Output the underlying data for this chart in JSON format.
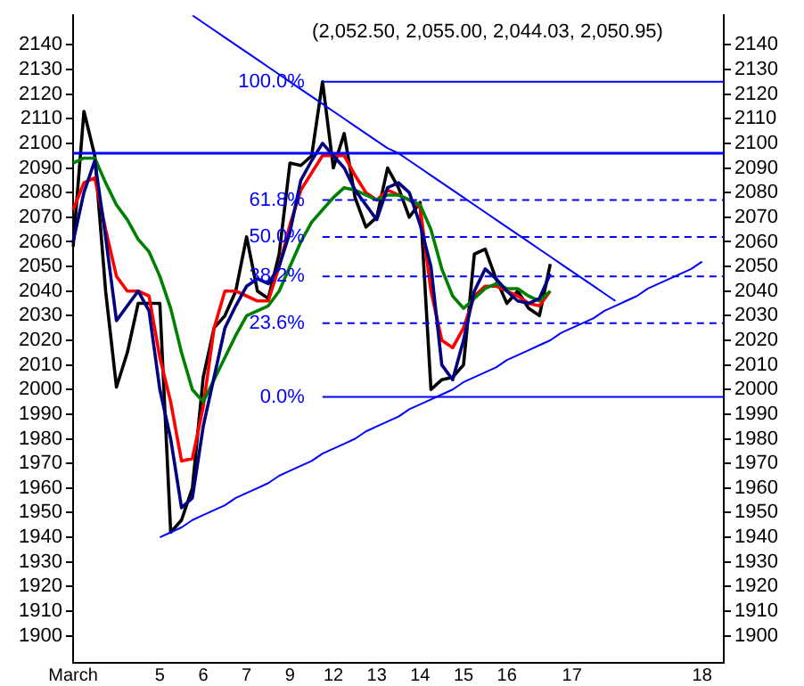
{
  "chart_data": {
    "type": "line",
    "title": "(2,052.50, 2,055.00, 2,044.03, 2,050.95)",
    "categories": [
      "March",
      null,
      null,
      null,
      null,
      null,
      null,
      null,
      "5",
      null,
      null,
      null,
      "6",
      null,
      null,
      null,
      "7",
      null,
      null,
      null,
      "9",
      null,
      null,
      null,
      "12",
      null,
      null,
      null,
      "13",
      null,
      null,
      null,
      "14",
      null,
      null,
      null,
      "15",
      null,
      null,
      null,
      "16",
      null,
      null,
      null,
      null,
      null,
      "17",
      null,
      null,
      null,
      null,
      null,
      null,
      null,
      null,
      null,
      null,
      null,
      "18",
      null,
      null
    ],
    "ylim": [
      1889,
      2152
    ],
    "yticks": [
      1900,
      1910,
      1920,
      1930,
      1940,
      1950,
      1960,
      1970,
      1980,
      1990,
      2000,
      2010,
      2020,
      2030,
      2040,
      2050,
      2060,
      2070,
      2080,
      2090,
      2100,
      2110,
      2120,
      2130,
      2140
    ],
    "y2lim": [
      1889,
      2152
    ],
    "y2ticks": [
      1900,
      1910,
      1920,
      1930,
      1940,
      1950,
      1960,
      1970,
      1980,
      1990,
      2000,
      2010,
      2020,
      2030,
      2040,
      2050,
      2060,
      2070,
      2080,
      2090,
      2100,
      2110,
      2120,
      2130,
      2140
    ],
    "grid": false,
    "legend": false,
    "marker": "none",
    "ref_lines": [
      {
        "axis": "y",
        "value": 2096,
        "color": "#0000ff"
      }
    ],
    "series": [
      {
        "name": "100.0%",
        "color": "#0000ff",
        "values": [
          null,
          null,
          null,
          null,
          null,
          null,
          null,
          null,
          null,
          null,
          null,
          null,
          null,
          null,
          null,
          null,
          null,
          null,
          null,
          null,
          null,
          null,
          null,
          2125,
          2125,
          2125,
          2125,
          2125,
          2125,
          2125,
          2125,
          2125,
          2125,
          2125,
          2125,
          2125,
          2125,
          2125,
          2125,
          2125,
          2125,
          2125,
          2125,
          2125,
          2125,
          2125,
          2125,
          2125,
          2125,
          2125,
          2125,
          2125,
          2125,
          2125,
          2125,
          2125,
          2125,
          2125,
          2125,
          2125,
          2125
        ]
      },
      {
        "name": "61.8%",
        "color": "#0000ff",
        "line_style": "dashed",
        "values": [
          null,
          null,
          null,
          null,
          null,
          null,
          null,
          null,
          null,
          null,
          null,
          null,
          null,
          null,
          null,
          null,
          null,
          null,
          null,
          null,
          null,
          null,
          null,
          2077,
          2077,
          2077,
          2077,
          2077,
          2077,
          2077,
          2077,
          2077,
          2077,
          2077,
          2077,
          2077,
          2077,
          2077,
          2077,
          2077,
          2077,
          2077,
          2077,
          2077,
          2077,
          2077,
          2077,
          2077,
          2077,
          2077,
          2077,
          2077,
          2077,
          2077,
          2077,
          2077,
          2077,
          2077,
          2077,
          2077,
          2077
        ]
      },
      {
        "name": "50.0%",
        "color": "#0000ff",
        "line_style": "dashed",
        "values": [
          null,
          null,
          null,
          null,
          null,
          null,
          null,
          null,
          null,
          null,
          null,
          null,
          null,
          null,
          null,
          null,
          null,
          null,
          null,
          null,
          null,
          null,
          null,
          2062,
          2062,
          2062,
          2062,
          2062,
          2062,
          2062,
          2062,
          2062,
          2062,
          2062,
          2062,
          2062,
          2062,
          2062,
          2062,
          2062,
          2062,
          2062,
          2062,
          2062,
          2062,
          2062,
          2062,
          2062,
          2062,
          2062,
          2062,
          2062,
          2062,
          2062,
          2062,
          2062,
          2062,
          2062,
          2062,
          2062,
          2062
        ]
      },
      {
        "name": "38.2%",
        "color": "#0000ff",
        "line_style": "dashed",
        "values": [
          null,
          null,
          null,
          null,
          null,
          null,
          null,
          null,
          null,
          null,
          null,
          null,
          null,
          null,
          null,
          null,
          null,
          null,
          null,
          null,
          null,
          null,
          null,
          2046,
          2046,
          2046,
          2046,
          2046,
          2046,
          2046,
          2046,
          2046,
          2046,
          2046,
          2046,
          2046,
          2046,
          2046,
          2046,
          2046,
          2046,
          2046,
          2046,
          2046,
          2046,
          2046,
          2046,
          2046,
          2046,
          2046,
          2046,
          2046,
          2046,
          2046,
          2046,
          2046,
          2046,
          2046,
          2046,
          2046,
          2046
        ]
      },
      {
        "name": "23.6%",
        "color": "#0000ff",
        "line_style": "dashed",
        "values": [
          null,
          null,
          null,
          null,
          null,
          null,
          null,
          null,
          null,
          null,
          null,
          null,
          null,
          null,
          null,
          null,
          null,
          null,
          null,
          null,
          null,
          null,
          null,
          2027,
          2027,
          2027,
          2027,
          2027,
          2027,
          2027,
          2027,
          2027,
          2027,
          2027,
          2027,
          2027,
          2027,
          2027,
          2027,
          2027,
          2027,
          2027,
          2027,
          2027,
          2027,
          2027,
          2027,
          2027,
          2027,
          2027,
          2027,
          2027,
          2027,
          2027,
          2027,
          2027,
          2027,
          2027,
          2027,
          2027,
          2027
        ]
      },
      {
        "name": "0.0%",
        "color": "#0000ff",
        "values": [
          null,
          null,
          null,
          null,
          null,
          null,
          null,
          null,
          null,
          null,
          null,
          null,
          null,
          null,
          null,
          null,
          null,
          null,
          null,
          null,
          null,
          null,
          null,
          1997,
          1997,
          1997,
          1997,
          1997,
          1997,
          1997,
          1997,
          1997,
          1997,
          1997,
          1997,
          1997,
          1997,
          1997,
          1997,
          1997,
          1997,
          1997,
          1997,
          1997,
          1997,
          1997,
          1997,
          1997,
          1997,
          1997,
          1997,
          1997,
          1997,
          1997,
          1997,
          1997,
          1997,
          1997,
          1997,
          1997,
          1997
        ]
      },
      {
        "color": "#0000ff",
        "values": [
          null,
          null,
          null,
          null,
          null,
          null,
          null,
          null,
          null,
          null,
          null,
          2152,
          2149,
          2146,
          2143,
          2140,
          2137,
          2134,
          2131,
          2128,
          2125,
          2122,
          2119,
          2116,
          2113,
          2110,
          2107,
          2104,
          2101,
          2098,
          2096,
          2093,
          2090,
          2087,
          2084,
          2081,
          2078,
          2075,
          2072,
          2069,
          2066,
          2063,
          2060,
          2057,
          2054,
          2051,
          2048,
          2045,
          2042,
          2039,
          2036,
          null,
          null,
          null,
          null,
          null,
          null,
          null,
          null,
          null,
          null
        ]
      },
      {
        "color": "#0000ff",
        "values": [
          null,
          null,
          null,
          null,
          null,
          null,
          null,
          null,
          1940,
          1942,
          1944,
          1947,
          1949,
          1951,
          1953,
          1956,
          1958,
          1960,
          1962,
          1965,
          1967,
          1969,
          1971,
          1974,
          1976,
          1978,
          1980,
          1983,
          1985,
          1987,
          1989,
          1992,
          1994,
          1996,
          1998,
          2000,
          2003,
          2005,
          2007,
          2009,
          2012,
          2014,
          2016,
          2018,
          2020,
          2023,
          2025,
          2027,
          2029,
          2032,
          2034,
          2036,
          2038,
          2041,
          2043,
          2045,
          2047,
          2049,
          2052,
          null,
          null
        ]
      },
      {
        "color": "#000080",
        "values": [
          2060,
          2080,
          2093,
          2062,
          2028,
          2034,
          2040,
          2032,
          2000,
          1980,
          1952,
          1956,
          1985,
          2005,
          2025,
          2034,
          2042,
          2045,
          2043,
          2050,
          2064,
          2085,
          2093,
          2100,
          2095,
          2090,
          2081,
          2075,
          2069,
          2082,
          2084,
          2080,
          2067,
          2050,
          2010,
          2004,
          2020,
          2040,
          2049,
          2045,
          2040,
          2036,
          2035,
          2037,
          2047,
          null,
          null,
          null,
          null,
          null,
          null,
          null,
          null,
          null,
          null,
          null,
          null,
          null,
          null,
          null,
          null
        ]
      },
      {
        "color": "#008000",
        "values": [
          2092,
          2094,
          2094,
          2084,
          2075,
          2069,
          2061,
          2056,
          2046,
          2033,
          2015,
          2000,
          1995,
          2004,
          2013,
          2022,
          2030,
          2032,
          2034,
          2040,
          2050,
          2060,
          2068,
          2073,
          2078,
          2082,
          2081,
          2079,
          2077,
          2079,
          2079,
          2077,
          2075,
          2065,
          2049,
          2038,
          2033,
          2037,
          2041,
          2043,
          2041,
          2041,
          2038,
          2036,
          2040,
          null,
          null,
          null,
          null,
          null,
          null,
          null,
          null,
          null,
          null,
          null,
          null,
          null,
          null,
          null,
          null
        ]
      },
      {
        "color": "#ff0000",
        "values": [
          2073,
          2084,
          2086,
          2065,
          2046,
          2040,
          2040,
          2038,
          2013,
          1995,
          1971,
          1972,
          1993,
          2025,
          2040,
          2040,
          2038,
          2036,
          2036,
          2050,
          2067,
          2081,
          2088,
          2095,
          2095,
          2095,
          2087,
          2080,
          2077,
          2081,
          2079,
          2077,
          2074,
          2040,
          2020,
          2017,
          2025,
          2038,
          2042,
          2042,
          2040,
          2038,
          2035,
          2034,
          2040,
          null,
          null,
          null,
          null,
          null,
          null,
          null,
          null,
          null,
          null,
          null,
          null,
          null,
          null,
          null,
          null
        ]
      },
      {
        "color": "#000000",
        "values": [
          2058,
          2113,
          2095,
          2040,
          2001,
          2015,
          2035,
          2035,
          2035,
          1942,
          1947,
          1960,
          2005,
          2025,
          2030,
          2040,
          2062,
          2040,
          2037,
          2055,
          2092,
          2091,
          2095,
          2125,
          2090,
          2104,
          2078,
          2066,
          2070,
          2090,
          2082,
          2070,
          2076,
          2000,
          2004,
          2005,
          2010,
          2055,
          2057,
          2045,
          2035,
          2040,
          2033,
          2030,
          2051,
          null,
          null,
          null,
          null,
          null,
          null,
          null,
          null,
          null,
          null,
          null,
          null,
          null,
          null,
          null,
          null
        ]
      }
    ]
  }
}
